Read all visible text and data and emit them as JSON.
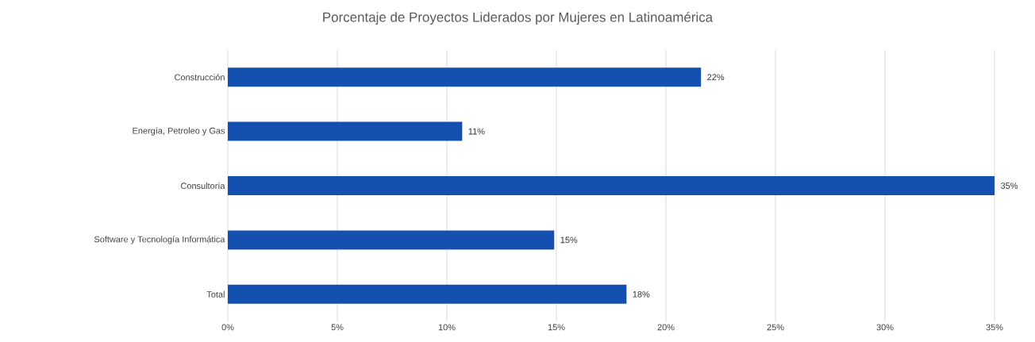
{
  "chart_data": {
    "type": "bar",
    "orientation": "horizontal",
    "title": "Porcentaje de Proyectos Liderados por Mujeres en Latinoamérica",
    "categories": [
      "Construcción",
      "Energía, Petroleo y Gas",
      "Consultoría",
      "Software y Tecnología Informática",
      "Total"
    ],
    "values": [
      21.6,
      10.7,
      35,
      14.9,
      18.2
    ],
    "value_labels": [
      "22%",
      "11%",
      "35%",
      "15%",
      "18%"
    ],
    "color": "#1450b0",
    "xlim": [
      0,
      35
    ],
    "xticks": [
      {
        "value": 0,
        "label": "0%"
      },
      {
        "value": 5,
        "label": "5%"
      },
      {
        "value": 10,
        "label": "10%"
      },
      {
        "value": 15,
        "label": "15%"
      },
      {
        "value": 20,
        "label": "20%"
      },
      {
        "value": 25,
        "label": "25%"
      },
      {
        "value": 30,
        "label": "30%"
      },
      {
        "value": 35,
        "label": "35%"
      }
    ],
    "grid": "x"
  }
}
